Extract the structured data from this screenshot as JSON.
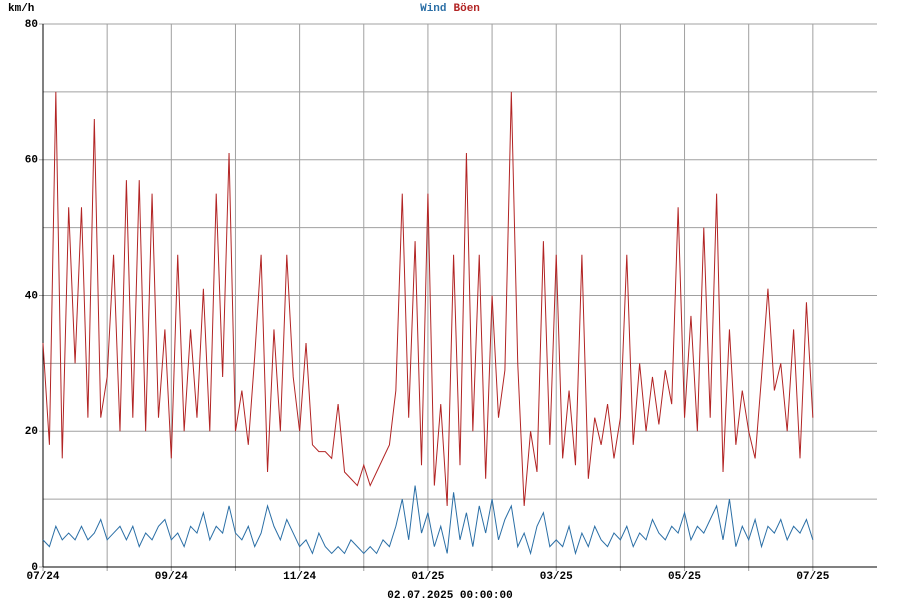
{
  "chart_data": {
    "type": "line",
    "ylabel": "km/h",
    "xlabel": "02.07.2025 00:00:00",
    "x": [
      0.0,
      0.1,
      0.2,
      0.3,
      0.4,
      0.5,
      0.6,
      0.7,
      0.8,
      0.9,
      1.0,
      1.1,
      1.2,
      1.3,
      1.4,
      1.5,
      1.6,
      1.7,
      1.8,
      1.9,
      2.0,
      2.1,
      2.2,
      2.3,
      2.4,
      2.5,
      2.6,
      2.7,
      2.8,
      2.9,
      3.0,
      3.1,
      3.2,
      3.3,
      3.4,
      3.5,
      3.6,
      3.7,
      3.8,
      3.9,
      4.0,
      4.1,
      4.2,
      4.3,
      4.4,
      4.5,
      4.6,
      4.7,
      4.8,
      4.9,
      5.0,
      5.1,
      5.2,
      5.3,
      5.4,
      5.5,
      5.6,
      5.7,
      5.8,
      5.9,
      6.0,
      6.1,
      6.2,
      6.3,
      6.4,
      6.5,
      6.6,
      6.7,
      6.8,
      6.9,
      7.0,
      7.1,
      7.2,
      7.3,
      7.4,
      7.5,
      7.6,
      7.7,
      7.8,
      7.9,
      8.0,
      8.1,
      8.2,
      8.3,
      8.4,
      8.5,
      8.6,
      8.7,
      8.8,
      8.9,
      9.0,
      9.1,
      9.2,
      9.3,
      9.4,
      9.5,
      9.6,
      9.7,
      9.8,
      9.9,
      10.0,
      10.1,
      10.2,
      10.3,
      10.4,
      10.5,
      10.6,
      10.7,
      10.8,
      10.9,
      11.0,
      11.1,
      11.2,
      11.3,
      11.4,
      11.5,
      11.6,
      11.7,
      11.8,
      11.9,
      12.0
    ],
    "series": [
      {
        "name": "Wind",
        "color": "#2b6fa6",
        "values": [
          4,
          3,
          6,
          4,
          5,
          4,
          6,
          4,
          5,
          7,
          4,
          5,
          6,
          4,
          6,
          3,
          5,
          4,
          6,
          7,
          4,
          5,
          3,
          6,
          5,
          8,
          4,
          6,
          5,
          9,
          5,
          4,
          6,
          3,
          5,
          9,
          6,
          4,
          7,
          5,
          3,
          4,
          2,
          5,
          3,
          2,
          3,
          2,
          4,
          3,
          2,
          3,
          2,
          4,
          3,
          6,
          10,
          4,
          12,
          5,
          8,
          3,
          6,
          2,
          11,
          4,
          8,
          3,
          9,
          5,
          10,
          4,
          7,
          9,
          3,
          5,
          2,
          6,
          8,
          3,
          4,
          3,
          6,
          2,
          5,
          3,
          6,
          4,
          3,
          5,
          4,
          6,
          3,
          5,
          4,
          7,
          5,
          4,
          6,
          5,
          8,
          4,
          6,
          5,
          7,
          9,
          4,
          10,
          3,
          6,
          4,
          7,
          3,
          6,
          5,
          7,
          4,
          6,
          5,
          7,
          4
        ]
      },
      {
        "name": "Böen",
        "color": "#b22424",
        "values": [
          33,
          18,
          70,
          16,
          53,
          30,
          53,
          22,
          66,
          22,
          28,
          46,
          20,
          57,
          22,
          57,
          20,
          55,
          22,
          35,
          16,
          46,
          20,
          35,
          22,
          41,
          20,
          55,
          28,
          61,
          20,
          26,
          18,
          31,
          46,
          14,
          35,
          20,
          46,
          28,
          20,
          33,
          18,
          17,
          17,
          16,
          24,
          14,
          13,
          12,
          15,
          12,
          14,
          16,
          18,
          26,
          55,
          22,
          48,
          15,
          55,
          12,
          24,
          9,
          46,
          15,
          61,
          20,
          46,
          13,
          40,
          22,
          29,
          70,
          30,
          9,
          20,
          14,
          48,
          18,
          46,
          16,
          26,
          15,
          46,
          13,
          22,
          18,
          24,
          16,
          22,
          46,
          18,
          30,
          20,
          28,
          21,
          29,
          24,
          53,
          22,
          37,
          20,
          50,
          22,
          55,
          14,
          35,
          18,
          26,
          20,
          16,
          28,
          41,
          26,
          30,
          20,
          35,
          16,
          39,
          22
        ]
      }
    ],
    "xlim": [
      0,
      13
    ],
    "xticks": [
      {
        "value": 0,
        "label": "07/24"
      },
      {
        "value": 2,
        "label": "09/24"
      },
      {
        "value": 4,
        "label": "11/24"
      },
      {
        "value": 6,
        "label": "01/25"
      },
      {
        "value": 8,
        "label": "03/25"
      },
      {
        "value": 10,
        "label": "05/25"
      },
      {
        "value": 12,
        "label": "07/25"
      }
    ],
    "xminor": [
      1,
      3,
      5,
      7,
      9,
      11
    ],
    "ylim": [
      0,
      80
    ],
    "yticks": [
      0,
      20,
      40,
      60,
      80
    ],
    "yminor": [
      10,
      30,
      50,
      70
    ],
    "grid": true
  }
}
